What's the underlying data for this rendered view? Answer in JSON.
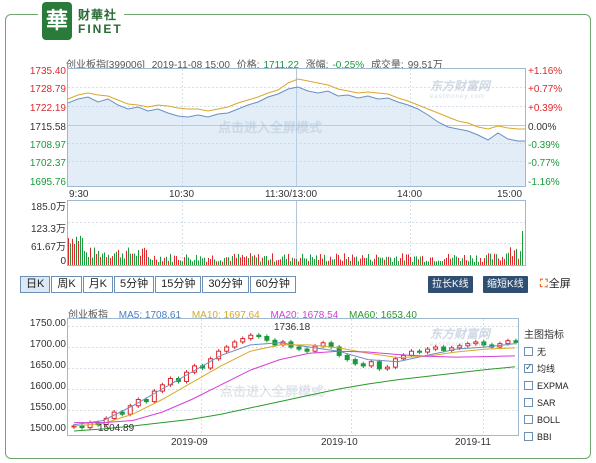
{
  "logo": {
    "glyph": "華",
    "name_cn": "财華社",
    "name_en": "FINET"
  },
  "info": {
    "index_label": "创业板指[399006]",
    "datetime": "2019-11-08 15:00",
    "price_label": "价格:",
    "price_value": "1711.22",
    "change_label": "涨幅:",
    "change_value": "-0.25%",
    "turnover_label": "成交量:",
    "turnover_value": "99.51万"
  },
  "intraday": {
    "price_ticks": [
      "1735.40",
      "1728.79",
      "1722.19",
      "1715.58",
      "1708.97",
      "1702.37",
      "1695.76"
    ],
    "pct_ticks": [
      "+1.16%",
      "+0.77%",
      "+0.39%",
      "0.00%",
      "-0.39%",
      "-0.77%",
      "-1.16%"
    ],
    "time_ticks": [
      "9:30",
      "10:30",
      "11:30/13:00",
      "14:00",
      "15:00"
    ],
    "volume_ticks": [
      "185.0万",
      "123.3万",
      "61.67万",
      "0"
    ],
    "watermark_text": "点击进入全屏模式",
    "brand_text": "东方财富网",
    "brand_sub": "eastmoney.com"
  },
  "tabs": [
    {
      "label": "日K",
      "active": true
    },
    {
      "label": "周K",
      "active": false
    },
    {
      "label": "月K",
      "active": false
    },
    {
      "label": "5分钟",
      "active": false
    },
    {
      "label": "15分钟",
      "active": false
    },
    {
      "label": "30分钟",
      "active": false
    },
    {
      "label": "60分钟",
      "active": false
    }
  ],
  "buttons": {
    "stretch": "拉长K线",
    "shorten": "缩短K线",
    "fullscreen": "全屏"
  },
  "kline": {
    "name": "创业板指",
    "ma5": "MA5: 1708.61",
    "ma10": "MA10: 1697.64",
    "ma20": "MA20: 1678.54",
    "ma60": "MA60: 1653.40",
    "price_ticks": [
      "1750.00",
      "1700.00",
      "1650.00",
      "1600.00",
      "1550.00",
      "1500.00"
    ],
    "date_ticks": [
      "2019-09",
      "2019-10",
      "2019-11"
    ],
    "high_label": "1736.18",
    "low_label": "1504.89",
    "watermark_text": "点击进入全屏模式",
    "brand_text": "东方财富网",
    "brand_sub": "eastmoney.com"
  },
  "indicators": {
    "title": "主图指标",
    "items": [
      {
        "label": "无",
        "checked": false
      },
      {
        "label": "均线",
        "checked": true
      },
      {
        "label": "EXPMA",
        "checked": false
      },
      {
        "label": "SAR",
        "checked": false
      },
      {
        "label": "BOLL",
        "checked": false
      },
      {
        "label": "BBI",
        "checked": false
      }
    ]
  },
  "colors": {
    "up": "#e0262b",
    "down": "#1a9a3a",
    "price_line": "#6a8fc3",
    "avg_line": "#d9a82a",
    "ma5": "#6a8fc3",
    "ma10": "#d9a82a",
    "ma20": "#d63dd6",
    "ma60": "#2a9a2a"
  }
}
